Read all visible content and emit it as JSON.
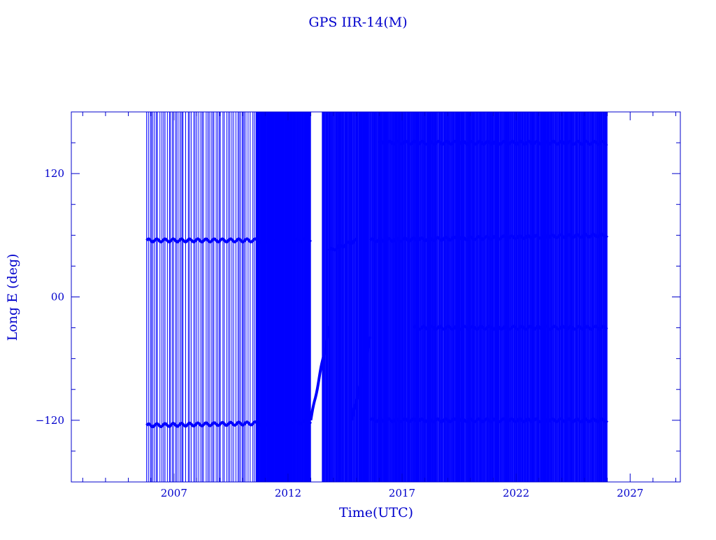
{
  "chart_data": {
    "type": "line",
    "title": "GPS IIR-14(M)",
    "xlabel": "Time(UTC)",
    "ylabel": "Long E (deg)",
    "xlim": [
      2002.5,
      2029.2
    ],
    "ylim": [
      -180,
      180
    ],
    "xticks": [
      2007,
      2012,
      2017,
      2022,
      2027
    ],
    "xtick_labels": [
      "2007",
      "2012",
      "2017",
      "2022",
      "2027"
    ],
    "yticks": [
      120,
      0,
      -120
    ],
    "ytick_labels": [
      "120",
      "00",
      "-120"
    ],
    "grid": false,
    "color": "#0000ff",
    "data_range": [
      2005.8,
      2026.0
    ],
    "tracks": [
      {
        "x": [
          2005.8,
          2013.0
        ],
        "lon": [
          55,
          55
        ]
      },
      {
        "x": [
          2005.8,
          2013.0
        ],
        "lon": [
          -125,
          -122
        ]
      },
      {
        "x": [
          2013.0,
          2013.8
        ],
        "lon": [
          -120,
          -30
        ]
      },
      {
        "x": [
          2013.8,
          2015.0
        ],
        "lon": [
          45,
          55
        ]
      },
      {
        "x": [
          2014.8,
          2015.6
        ],
        "lon": [
          -120,
          -40
        ]
      },
      {
        "x": [
          2015.6,
          2026.0
        ],
        "lon": [
          55,
          60
        ]
      },
      {
        "x": [
          2015.6,
          2026.0
        ],
        "lon": [
          -120,
          -120
        ]
      },
      {
        "x": [
          2017.5,
          2026.0
        ],
        "lon": [
          -30,
          -30
        ]
      },
      {
        "x": [
          2016.0,
          2026.0
        ],
        "lon": [
          150,
          150
        ]
      }
    ],
    "dense_periods": [
      [
        2005.8,
        2010.6,
        0.08
      ],
      [
        2010.6,
        2013.0,
        0.015
      ],
      [
        2013.5,
        2026.0,
        0.02
      ]
    ]
  }
}
